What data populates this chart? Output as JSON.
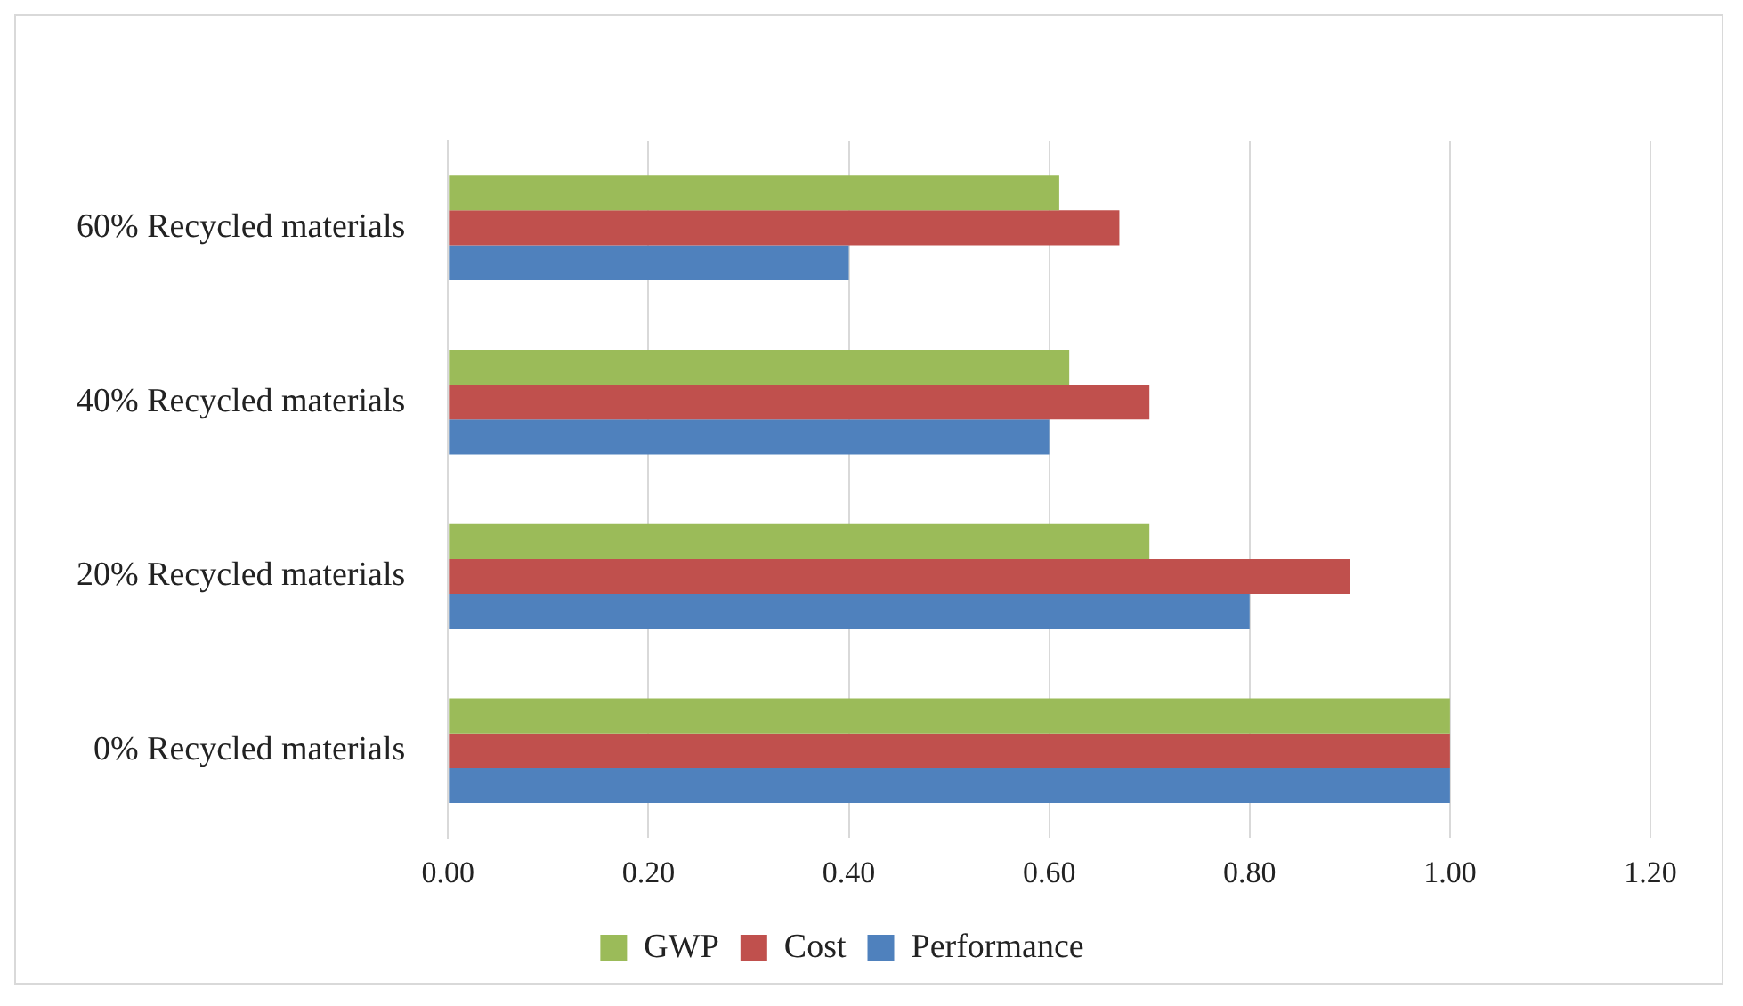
{
  "chart_data": {
    "type": "bar",
    "orientation": "horizontal",
    "categories": [
      "60% Recycled materials",
      "40% Recycled materials",
      "20% Recycled materials",
      "0% Recycled materials"
    ],
    "series": [
      {
        "name": "GWP",
        "color": "#9bbb59",
        "values": [
          0.61,
          0.62,
          0.7,
          1.0
        ]
      },
      {
        "name": "Cost",
        "color": "#c0504d",
        "values": [
          0.67,
          0.7,
          0.9,
          1.0
        ]
      },
      {
        "name": "Performance",
        "color": "#4f81bd",
        "values": [
          0.4,
          0.6,
          0.8,
          1.0
        ]
      }
    ],
    "xlim": [
      0,
      1.2
    ],
    "xticks": [
      {
        "value": 0,
        "label": "0.00"
      },
      {
        "value": 0.2,
        "label": "0.20"
      },
      {
        "value": 0.4,
        "label": "0.40"
      },
      {
        "value": 0.6,
        "label": "0.60"
      },
      {
        "value": 0.8,
        "label": "0.80"
      },
      {
        "value": 1,
        "label": "1.00"
      },
      {
        "value": 1.2,
        "label": "1.20"
      }
    ],
    "grid": "x",
    "legend": "bottom"
  }
}
